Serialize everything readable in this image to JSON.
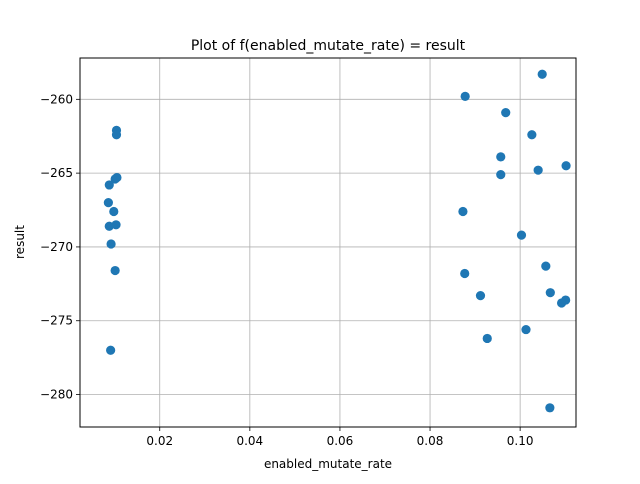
{
  "chart_data": {
    "type": "scatter",
    "title": "Plot of f(enabled_mutate_rate) = result",
    "xlabel": "enabled_mutate_rate",
    "ylabel": "result",
    "xlim": [
      0.0023,
      0.1124
    ],
    "ylim": [
      -282.2,
      -257.2
    ],
    "xticks": [
      0.02,
      0.04,
      0.06,
      0.08,
      0.1
    ],
    "xtick_labels": [
      "0.02",
      "0.04",
      "0.06",
      "0.08",
      "0.10"
    ],
    "yticks": [
      -280,
      -275,
      -270,
      -265,
      -260
    ],
    "ytick_labels": [
      "−280",
      "−275",
      "−270",
      "−265",
      "−260"
    ],
    "grid": true,
    "marker_color": "#1f77b4",
    "points": [
      {
        "x": 0.0104,
        "y": -262.1
      },
      {
        "x": 0.0104,
        "y": -262.4
      },
      {
        "x": 0.0101,
        "y": -265.4
      },
      {
        "x": 0.0105,
        "y": -265.3
      },
      {
        "x": 0.0088,
        "y": -265.8
      },
      {
        "x": 0.0086,
        "y": -267.0
      },
      {
        "x": 0.0098,
        "y": -267.6
      },
      {
        "x": 0.0088,
        "y": -268.6
      },
      {
        "x": 0.0103,
        "y": -268.5
      },
      {
        "x": 0.0092,
        "y": -269.8
      },
      {
        "x": 0.0101,
        "y": -271.6
      },
      {
        "x": 0.0091,
        "y": -277.0
      },
      {
        "x": 0.1049,
        "y": -258.3
      },
      {
        "x": 0.0878,
        "y": -259.8
      },
      {
        "x": 0.0968,
        "y": -260.9
      },
      {
        "x": 0.1026,
        "y": -262.4
      },
      {
        "x": 0.0957,
        "y": -263.9
      },
      {
        "x": 0.0957,
        "y": -265.1
      },
      {
        "x": 0.104,
        "y": -264.8
      },
      {
        "x": 0.1102,
        "y": -264.5
      },
      {
        "x": 0.0873,
        "y": -267.6
      },
      {
        "x": 0.1003,
        "y": -269.2
      },
      {
        "x": 0.0877,
        "y": -271.8
      },
      {
        "x": 0.1057,
        "y": -271.3
      },
      {
        "x": 0.0912,
        "y": -273.3
      },
      {
        "x": 0.1067,
        "y": -273.1
      },
      {
        "x": 0.1101,
        "y": -273.6
      },
      {
        "x": 0.1092,
        "y": -273.8
      },
      {
        "x": 0.1013,
        "y": -275.6
      },
      {
        "x": 0.0927,
        "y": -276.2
      },
      {
        "x": 0.1066,
        "y": -280.9
      }
    ]
  }
}
